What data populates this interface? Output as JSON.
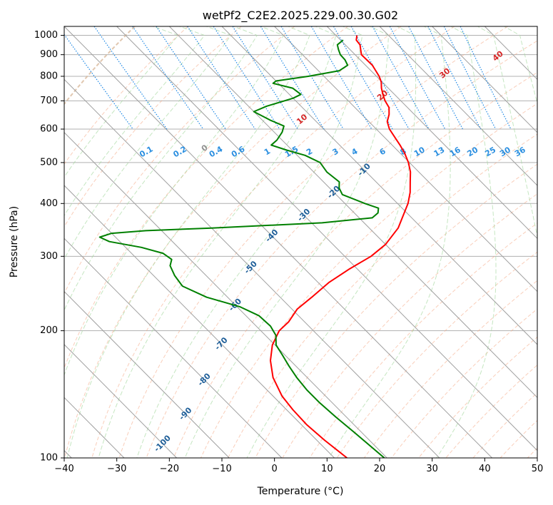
{
  "chart_data": {
    "type": "line",
    "title": "wetPf2_C2E2.2025.229.00.30.G02",
    "xlabel": "Temperature (°C)",
    "ylabel": "Pressure (hPa)",
    "xlim": [
      -40,
      50
    ],
    "ylim": [
      1050,
      100
    ],
    "y_scale": "log",
    "skew": "skew-T log-p",
    "grid": true,
    "x_ticks": [
      -40,
      -30,
      -20,
      -10,
      0,
      10,
      20,
      30,
      40,
      50
    ],
    "x_tick_labels": [
      "−40",
      "−30",
      "−20",
      "−10",
      "0",
      "10",
      "20",
      "30",
      "40",
      "50"
    ],
    "y_ticks": [
      100,
      200,
      300,
      400,
      500,
      600,
      700,
      800,
      900,
      1000
    ],
    "y_tick_labels": [
      "100",
      "200",
      "300",
      "400",
      "500",
      "600",
      "700",
      "800",
      "900",
      "1000"
    ],
    "colors": {
      "temperature": "#ff0000",
      "dewpoint": "#008000",
      "isotherm": "#a0a0a0",
      "dry_adiabat": "#f4a582",
      "moist_adiabat": "#a6d8a0",
      "mixing_ratio": "#1e88e5",
      "isotherm_label": "#1f5f99",
      "mixing_ratio_label": "#2b8fe0",
      "moist_adiabat_label": "#d62728",
      "dry_adiabat_label": "#a0a0a0"
    },
    "series": [
      {
        "key": "temperature",
        "points": [
          [
            14.0,
            1000
          ],
          [
            13.0,
            975
          ],
          [
            12.8,
            950
          ],
          [
            11.2,
            900
          ],
          [
            11.3,
            850
          ],
          [
            10.5,
            800
          ],
          [
            9.8,
            775
          ],
          [
            8.7,
            750
          ],
          [
            7.8,
            725
          ],
          [
            7.0,
            700
          ],
          [
            6.5,
            675
          ],
          [
            5.2,
            650
          ],
          [
            3.5,
            625
          ],
          [
            2.5,
            600
          ],
          [
            2.0,
            575
          ],
          [
            1.5,
            550
          ],
          [
            0.8,
            525
          ],
          [
            -0.2,
            500
          ],
          [
            -1.6,
            475
          ],
          [
            -3.5,
            450
          ],
          [
            -5.5,
            425
          ],
          [
            -8.0,
            400
          ],
          [
            -10.5,
            380
          ],
          [
            -14.5,
            350
          ],
          [
            -20.0,
            320
          ],
          [
            -25.0,
            300
          ],
          [
            -31.5,
            280
          ],
          [
            -38.0,
            260
          ],
          [
            -44.0,
            240
          ],
          [
            -49.0,
            225
          ],
          [
            -53.0,
            210
          ],
          [
            -56.5,
            200
          ],
          [
            -60.5,
            185
          ],
          [
            -63.8,
            170
          ],
          [
            -66.5,
            155
          ],
          [
            -68.3,
            140
          ],
          [
            -68.8,
            130
          ],
          [
            -69.0,
            120
          ],
          [
            -68.5,
            110
          ],
          [
            -67.6,
            100
          ]
        ]
      },
      {
        "key": "dewpoint",
        "points": [
          [
            10.5,
            975
          ],
          [
            8.5,
            950
          ],
          [
            7.8,
            925
          ],
          [
            7.2,
            900
          ],
          [
            7.1,
            875
          ],
          [
            6.6,
            850
          ],
          [
            4.0,
            825
          ],
          [
            -3.0,
            800
          ],
          [
            -10.0,
            780
          ],
          [
            -11.0,
            770
          ],
          [
            -8.2,
            750
          ],
          [
            -7.8,
            725
          ],
          [
            -10.0,
            710
          ],
          [
            -16.5,
            680
          ],
          [
            -20.0,
            660
          ],
          [
            -18.5,
            630
          ],
          [
            -17.0,
            610
          ],
          [
            -18.5,
            590
          ],
          [
            -21.0,
            565
          ],
          [
            -23.0,
            550
          ],
          [
            -21.0,
            535
          ],
          [
            -18.5,
            520
          ],
          [
            -17.0,
            500
          ],
          [
            -17.5,
            475
          ],
          [
            -17.0,
            450
          ],
          [
            -18.2,
            435
          ],
          [
            -18.8,
            420
          ],
          [
            -16.2,
            400
          ],
          [
            -14.5,
            390
          ],
          [
            -15.5,
            380
          ],
          [
            -17.5,
            370
          ],
          [
            -28.0,
            360
          ],
          [
            -50.0,
            350
          ],
          [
            -63.0,
            345
          ],
          [
            -70.0,
            340
          ],
          [
            -73.0,
            333
          ],
          [
            -72.0,
            325
          ],
          [
            -67.0,
            315
          ],
          [
            -64.0,
            305
          ],
          [
            -63.5,
            295
          ],
          [
            -65.0,
            285
          ],
          [
            -66.0,
            270
          ],
          [
            -66.5,
            255
          ],
          [
            -64.0,
            240
          ],
          [
            -59.5,
            228
          ],
          [
            -57.5,
            217
          ],
          [
            -57.3,
            205
          ],
          [
            -58.0,
            195
          ],
          [
            -59.8,
            185
          ],
          [
            -60.5,
            175
          ],
          [
            -61.3,
            165
          ],
          [
            -62.0,
            155
          ],
          [
            -62.4,
            145
          ],
          [
            -62.4,
            135
          ],
          [
            -62.0,
            125
          ],
          [
            -61.4,
            115
          ],
          [
            -60.5,
            100
          ]
        ]
      }
    ],
    "isotherm_labels": [
      {
        "text": "-100",
        "t": -100,
        "p": 108
      },
      {
        "text": "-90",
        "t": -90,
        "p": 127
      },
      {
        "text": "-80",
        "t": -80,
        "p": 153
      },
      {
        "text": "-70",
        "t": -70,
        "p": 186
      },
      {
        "text": "-60",
        "t": -60,
        "p": 230
      },
      {
        "text": "-50",
        "t": -50,
        "p": 282
      },
      {
        "text": "-40",
        "t": -40,
        "p": 335
      },
      {
        "text": "-30",
        "t": -30,
        "p": 375
      },
      {
        "text": "-20",
        "t": -20,
        "p": 425
      },
      {
        "text": "-10",
        "t": -10,
        "p": 480
      }
    ],
    "mixing_ratio_values": [
      0.1,
      0.2,
      0.4,
      0.6,
      1,
      1.5,
      2,
      3,
      4,
      6,
      8,
      10,
      13,
      16,
      20,
      25,
      30,
      36
    ],
    "mixing_ratio_labels": [
      "0.1",
      "0.2",
      "0.4",
      "0.6",
      "1",
      "1.5",
      "2",
      "3",
      "4",
      "6",
      "8",
      "10",
      "13",
      "16",
      "20",
      "25",
      "30",
      "36"
    ],
    "moist_adiabat_labels": [
      {
        "text": "0",
        "theta_c": 0,
        "p": 540
      },
      {
        "text": "10",
        "theta_c": 10,
        "p": 630
      },
      {
        "text": "20",
        "theta_c": 20,
        "p": 720
      },
      {
        "text": "30",
        "theta_c": 30,
        "p": 810
      },
      {
        "text": "40",
        "theta_c": 40,
        "p": 890
      }
    ]
  }
}
